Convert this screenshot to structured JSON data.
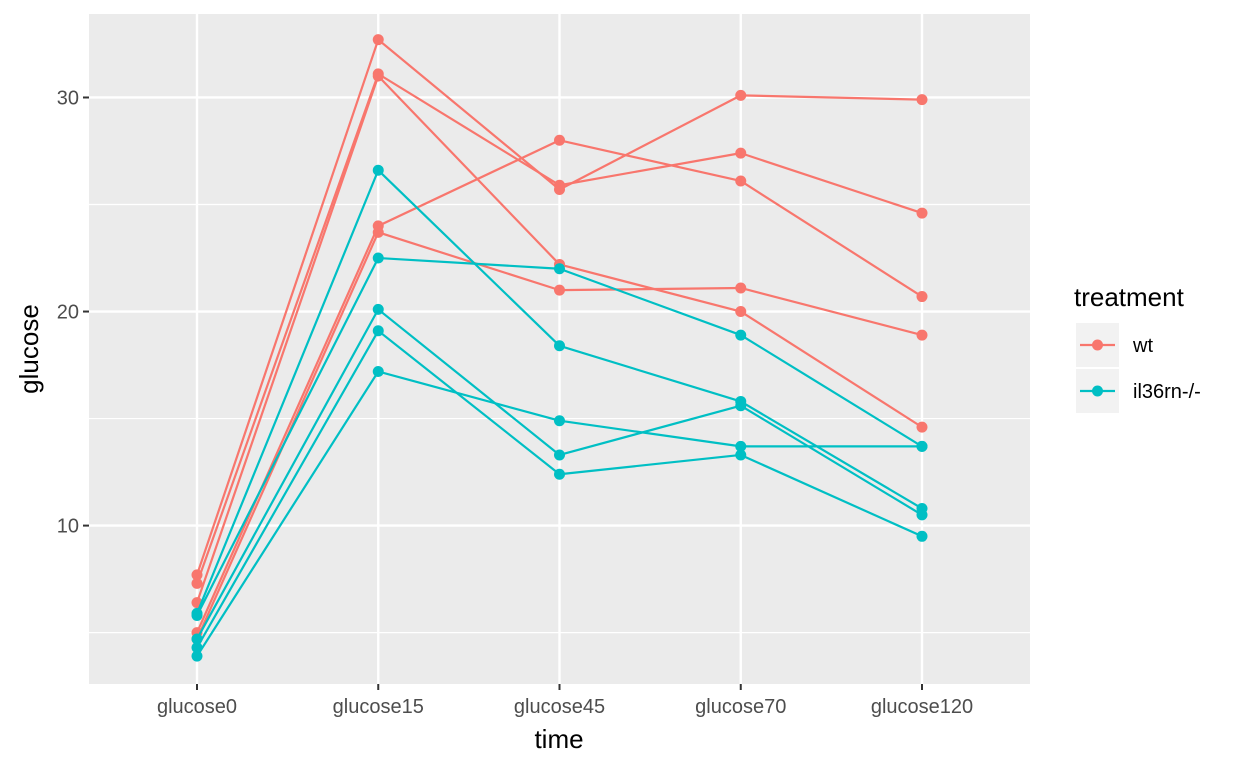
{
  "chart_data": {
    "type": "line",
    "xlabel": "time",
    "ylabel": "glucose",
    "categories": [
      "glucose0",
      "glucose15",
      "glucose45",
      "glucose70",
      "glucose120"
    ],
    "ylim": [
      2.6,
      33.9
    ],
    "yticks": [
      10,
      20,
      30
    ],
    "grid": true,
    "legend": {
      "title": "treatment",
      "position": "right",
      "entries": [
        {
          "label": "wt",
          "color": "#F8766D"
        },
        {
          "label": "il36rn-/-",
          "color": "#00BFC4"
        }
      ]
    },
    "series": [
      {
        "group": "wt",
        "values": [
          7.7,
          32.7,
          25.7,
          30.1,
          29.9
        ]
      },
      {
        "group": "wt",
        "values": [
          7.3,
          31.1,
          25.9,
          27.4,
          24.6
        ]
      },
      {
        "group": "wt",
        "values": [
          6.4,
          31.0,
          22.2,
          20.0,
          14.6
        ]
      },
      {
        "group": "wt",
        "values": [
          5.0,
          24.0,
          28.0,
          26.1,
          20.7
        ]
      },
      {
        "group": "wt",
        "values": [
          4.7,
          23.7,
          21.0,
          21.1,
          18.9
        ]
      },
      {
        "group": "il36rn-/-",
        "values": [
          5.9,
          26.6,
          18.4,
          15.8,
          10.8
        ]
      },
      {
        "group": "il36rn-/-",
        "values": [
          5.8,
          22.5,
          22.0,
          18.9,
          13.7
        ]
      },
      {
        "group": "il36rn-/-",
        "values": [
          4.7,
          20.1,
          13.3,
          15.6,
          10.5
        ]
      },
      {
        "group": "il36rn-/-",
        "values": [
          4.3,
          19.1,
          12.4,
          13.3,
          9.5
        ]
      },
      {
        "group": "il36rn-/-",
        "values": [
          3.9,
          17.2,
          14.9,
          13.7,
          13.7
        ]
      }
    ]
  }
}
